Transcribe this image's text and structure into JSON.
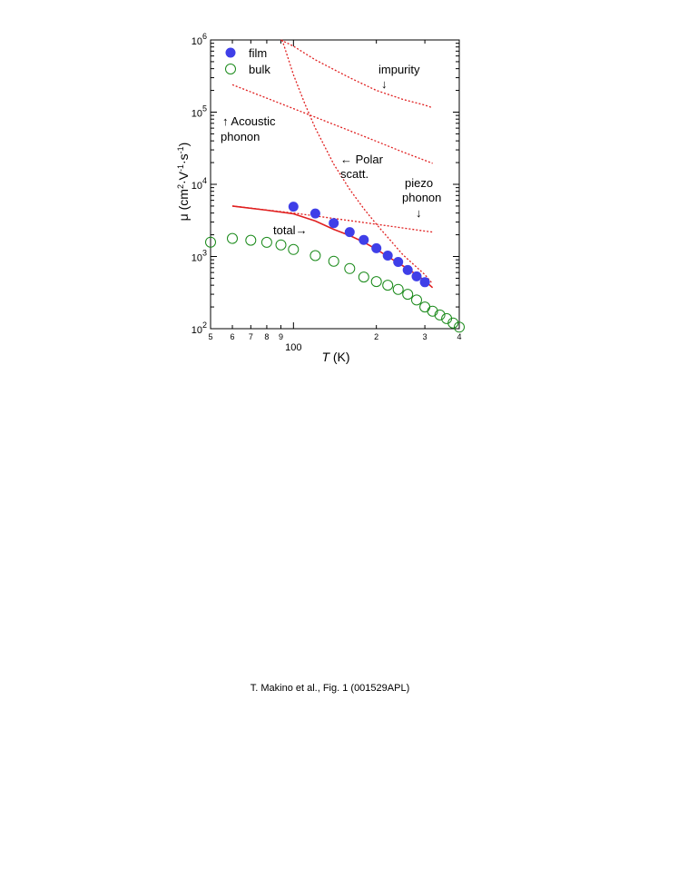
{
  "chart_data": {
    "type": "scatter",
    "x_scale": "log",
    "y_scale": "log",
    "xlim": [
      50,
      400
    ],
    "ylim": [
      100,
      1000000
    ],
    "xlabel": "T (K)",
    "ylabel": "μ (cm²·V⁻¹·s⁻¹)",
    "x_major_tick_labels": [
      "100"
    ],
    "x_minor_tick_labels": [
      "5",
      "6",
      "7",
      "8",
      "9",
      "2",
      "3",
      "4"
    ],
    "y_tick_labels": [
      {
        "value": 100,
        "base": "10",
        "exp": "2"
      },
      {
        "value": 1000,
        "base": "10",
        "exp": "3"
      },
      {
        "value": 10000,
        "base": "10",
        "exp": "4"
      },
      {
        "value": 100000,
        "base": "10",
        "exp": "5"
      },
      {
        "value": 1000000,
        "base": "10",
        "exp": "6"
      }
    ],
    "grid": false,
    "legend_position": "top-left",
    "series": [
      {
        "name": "film",
        "marker": "filled-circle",
        "color": "#3f3fe8",
        "x": [
          100,
          120,
          140,
          160,
          180,
          200,
          220,
          240,
          260,
          280,
          300
        ],
        "y": [
          4900,
          3950,
          2900,
          2180,
          1700,
          1300,
          1030,
          840,
          650,
          530,
          440
        ]
      },
      {
        "name": "bulk",
        "marker": "open-circle",
        "color": "#1a8a1a",
        "x": [
          50,
          60,
          70,
          80,
          90,
          100,
          120,
          140,
          160,
          180,
          200,
          220,
          240,
          260,
          280,
          300,
          320,
          340,
          360,
          380,
          400
        ],
        "y": [
          1580,
          1780,
          1680,
          1570,
          1450,
          1250,
          1030,
          860,
          680,
          520,
          450,
          400,
          350,
          300,
          250,
          200,
          175,
          155,
          138,
          120,
          105
        ]
      }
    ],
    "curves": [
      {
        "label": "impurity",
        "style": "dotted",
        "color": "#e02020",
        "x": [
          90,
          100,
          120,
          140,
          160,
          200,
          250,
          300,
          320
        ],
        "y": [
          1000000,
          820000,
          530000,
          390000,
          300000,
          200000,
          150000,
          125000,
          115000
        ]
      },
      {
        "label": "Acoustic phonon",
        "style": "dotted",
        "color": "#e02020",
        "x": [
          60,
          80,
          100,
          150,
          200,
          250,
          300,
          320
        ],
        "y": [
          240000,
          156000,
          112000,
          61000,
          39500,
          28000,
          21500,
          19500
        ]
      },
      {
        "label": "Polar scatt.",
        "style": "dotted",
        "color": "#e02020",
        "x": [
          91,
          95,
          100,
          110,
          120,
          140,
          160,
          180,
          200,
          250,
          300,
          320
        ],
        "y": [
          1000000,
          600000,
          330000,
          130000,
          60000,
          19000,
          8500,
          4600,
          2800,
          1050,
          560,
          420
        ]
      },
      {
        "label": "piezo phonon",
        "style": "dotted",
        "color": "#e02020",
        "x": [
          60,
          80,
          100,
          150,
          200,
          250,
          300,
          320
        ],
        "y": [
          5000,
          4400,
          4000,
          3250,
          2800,
          2480,
          2250,
          2180
        ]
      },
      {
        "label": "total",
        "style": "solid",
        "color": "#e02020",
        "x": [
          60,
          80,
          100,
          120,
          140,
          160,
          180,
          200,
          220,
          250,
          280,
          300,
          320
        ],
        "y": [
          5000,
          4380,
          3900,
          3100,
          2380,
          1950,
          1580,
          1260,
          1000,
          740,
          560,
          460,
          370
        ]
      }
    ],
    "annotations": {
      "impurity_text": "impurity",
      "impurity_arrow": "↓",
      "acoustic_line1": "↑ Acoustic",
      "acoustic_line2": "phonon",
      "polar_line1": "← Polar",
      "polar_line2": "scatt.",
      "piezo_line1": "piezo",
      "piezo_line2": "phonon",
      "piezo_arrow": "↓",
      "total_text": "total→"
    }
  },
  "caption": "T. Makino et al., Fig. 1 (001529APL)"
}
